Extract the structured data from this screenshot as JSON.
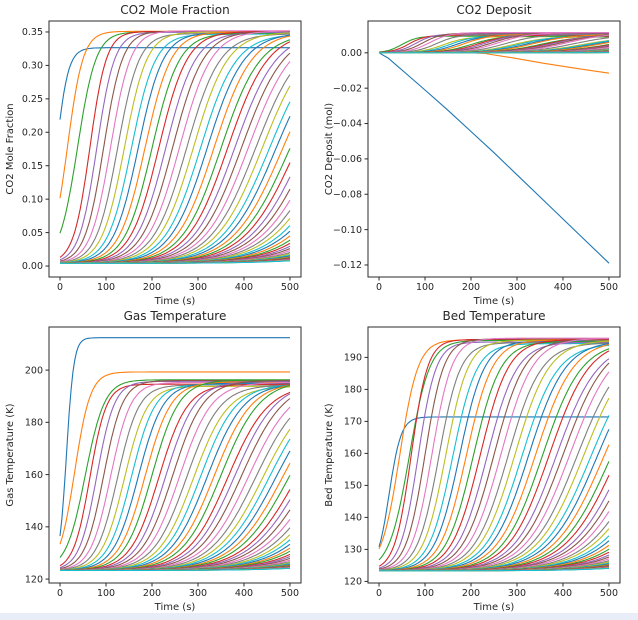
{
  "window": {
    "background": "#ffffff",
    "bottom_strip_color": "#e8edf7"
  },
  "colors": {
    "cycle": [
      "#1f77b4",
      "#ff7f0e",
      "#2ca02c",
      "#d62728",
      "#9467bd",
      "#8c564b",
      "#e377c2",
      "#7f7f7f",
      "#bcbd22",
      "#17becf"
    ],
    "axis": "#2b2b2b",
    "text": "#262626"
  },
  "chart_data": [
    {
      "id": "co2-mole-fraction",
      "type": "line",
      "model": "staggered-logistic-family",
      "title": "CO2 Mole Fraction",
      "xlabel": "Time (s)",
      "ylabel": "CO2 Mole Fraction",
      "xlim": [
        -24,
        524
      ],
      "ylim": [
        -0.0164,
        0.3664
      ],
      "xtick_vals": [
        0,
        100,
        200,
        300,
        400,
        500
      ],
      "xtick_labels": [
        "0",
        "100",
        "200",
        "300",
        "400",
        "500"
      ],
      "ytick_vals": [
        0.0,
        0.05,
        0.1,
        0.15,
        0.2,
        0.25,
        0.3,
        0.35
      ],
      "ytick_labels": [
        "0.00",
        "0.05",
        "0.10",
        "0.15",
        "0.20",
        "0.25",
        "0.30",
        "0.35"
      ],
      "t_range": [
        0,
        500
      ],
      "n_series": 60,
      "baseline": 0.004,
      "default_final": 0.349,
      "final_jitter_cycle": [
        0,
        0.0012,
        -0.0008,
        0.0018,
        0.0006,
        0.0022,
        0.0028,
        -0.0014,
        0.001,
        -0.0022
      ],
      "stagger": {
        "tm_base": 20,
        "tm_step": 15,
        "tau_base": 14,
        "tau_step": 1.3
      },
      "overrides": {
        "0": {
          "final": 0.3265,
          "tm": -9,
          "tau": 13
        },
        "1": {
          "final": 0.351,
          "tm": 16,
          "tau": 17
        },
        "2": {
          "final": 0.3502,
          "tm": 38,
          "tau": 20
        }
      }
    },
    {
      "id": "co2-deposit",
      "type": "line",
      "model": "staggered-logistic-family",
      "title": "CO2 Deposit",
      "xlabel": "Time (s)",
      "ylabel": "CO2 Deposit (mol)",
      "xlim": [
        -24,
        524
      ],
      "ylim": [
        -0.1268,
        0.018
      ],
      "xtick_vals": [
        0,
        100,
        200,
        300,
        400,
        500
      ],
      "xtick_labels": [
        "0",
        "100",
        "200",
        "300",
        "400",
        "500"
      ],
      "ytick_vals": [
        0.0,
        -0.02,
        -0.04,
        -0.06,
        -0.08,
        -0.1,
        -0.12
      ],
      "ytick_labels": [
        "0.00",
        "−0.02",
        "−0.04",
        "−0.06",
        "−0.08",
        "−0.10",
        "−0.12"
      ],
      "t_range": [
        0,
        500
      ],
      "n_series": 60,
      "baseline": 0,
      "amp_cycle": [
        0.0098,
        0.0103,
        0.0094,
        0.01,
        0.0107,
        0.0112,
        0.0115,
        0.0104,
        0.0091,
        0.0096
      ],
      "stagger": {
        "tm_base": 20,
        "tm_step": 15,
        "tau_base": 14,
        "tau_step": 1.3
      },
      "explicit": [
        {
          "index": 0,
          "points": [
            [
              0,
              0
            ],
            [
              20,
              -0.003
            ],
            [
              40,
              -0.0075
            ],
            [
              60,
              -0.012
            ],
            [
              80,
              -0.0165
            ],
            [
              100,
              -0.021
            ],
            [
              150,
              -0.0325
            ],
            [
              200,
              -0.0445
            ],
            [
              250,
              -0.0565
            ],
            [
              300,
              -0.069
            ],
            [
              350,
              -0.0815
            ],
            [
              400,
              -0.094
            ],
            [
              450,
              -0.1065
            ],
            [
              500,
              -0.119
            ]
          ]
        },
        {
          "index": 1,
          "points": [
            [
              0,
              0
            ],
            [
              60,
              0.0003
            ],
            [
              120,
              0.0004
            ],
            [
              180,
              0.0002
            ],
            [
              230,
              -0.0004
            ],
            [
              290,
              -0.0028
            ],
            [
              360,
              -0.006
            ],
            [
              430,
              -0.0088
            ],
            [
              500,
              -0.0115
            ]
          ]
        }
      ]
    },
    {
      "id": "gas-temperature",
      "type": "line",
      "model": "staggered-logistic-family",
      "title": "Gas Temperature",
      "xlabel": "Time (s)",
      "ylabel": "Gas Temperature (K)",
      "xlim": [
        -24,
        524
      ],
      "ylim": [
        118.5,
        216.5
      ],
      "xtick_vals": [
        0,
        100,
        200,
        300,
        400,
        500
      ],
      "xtick_labels": [
        "0",
        "100",
        "200",
        "300",
        "400",
        "500"
      ],
      "ytick_vals": [
        120,
        140,
        160,
        180,
        200
      ],
      "ytick_labels": [
        "120",
        "140",
        "160",
        "180",
        "200"
      ],
      "t_range": [
        0,
        500
      ],
      "n_series": 60,
      "baseline": 123.3,
      "default_final": 195.0,
      "final_jitter_cycle": [
        0,
        0.5,
        1.2,
        -0.4,
        0.7,
        1.0,
        0.3,
        -0.7,
        -1.2,
        -0.3
      ],
      "stagger": {
        "tm_base": 20,
        "tm_step": 15,
        "tau_base": 14,
        "tau_step": 1.3
      },
      "overrides": {
        "0": {
          "final": 212.4,
          "tm": 14,
          "tau": 8
        },
        "1": {
          "final": 199.3,
          "tm": 32,
          "tau": 17
        },
        "2": {
          "final": 196.3,
          "tm": 55,
          "tau": 21
        }
      }
    },
    {
      "id": "bed-temperature",
      "type": "line",
      "model": "staggered-logistic-family",
      "title": "Bed Temperature",
      "xlabel": "Time (s)",
      "ylabel": "Bed Temperature (K)",
      "xlim": [
        -24,
        524
      ],
      "ylim": [
        119.5,
        199.5
      ],
      "xtick_vals": [
        0,
        100,
        200,
        300,
        400,
        500
      ],
      "xtick_labels": [
        "0",
        "100",
        "200",
        "300",
        "400",
        "500"
      ],
      "ytick_vals": [
        120,
        130,
        140,
        150,
        160,
        170,
        180,
        190
      ],
      "ytick_labels": [
        "120",
        "130",
        "140",
        "150",
        "160",
        "170",
        "180",
        "190"
      ],
      "t_range": [
        0,
        500
      ],
      "n_series": 60,
      "baseline": 123.3,
      "default_final": 195.2,
      "final_jitter_cycle": [
        0,
        0.3,
        -0.2,
        0.4,
        -0.4,
        0.6,
        0.8,
        -0.6,
        0.2,
        -0.9
      ],
      "stagger": {
        "tm_base": 25,
        "tm_step": 15,
        "tau_base": 14,
        "tau_step": 1.3
      },
      "overrides": {
        "0": {
          "final": 171.4,
          "tm": 22,
          "tau": 13
        },
        "1": {
          "final": 195.5,
          "tm": 45,
          "tau": 20
        },
        "2": {
          "final": 195.3,
          "tm": 66,
          "tau": 22
        }
      }
    }
  ]
}
